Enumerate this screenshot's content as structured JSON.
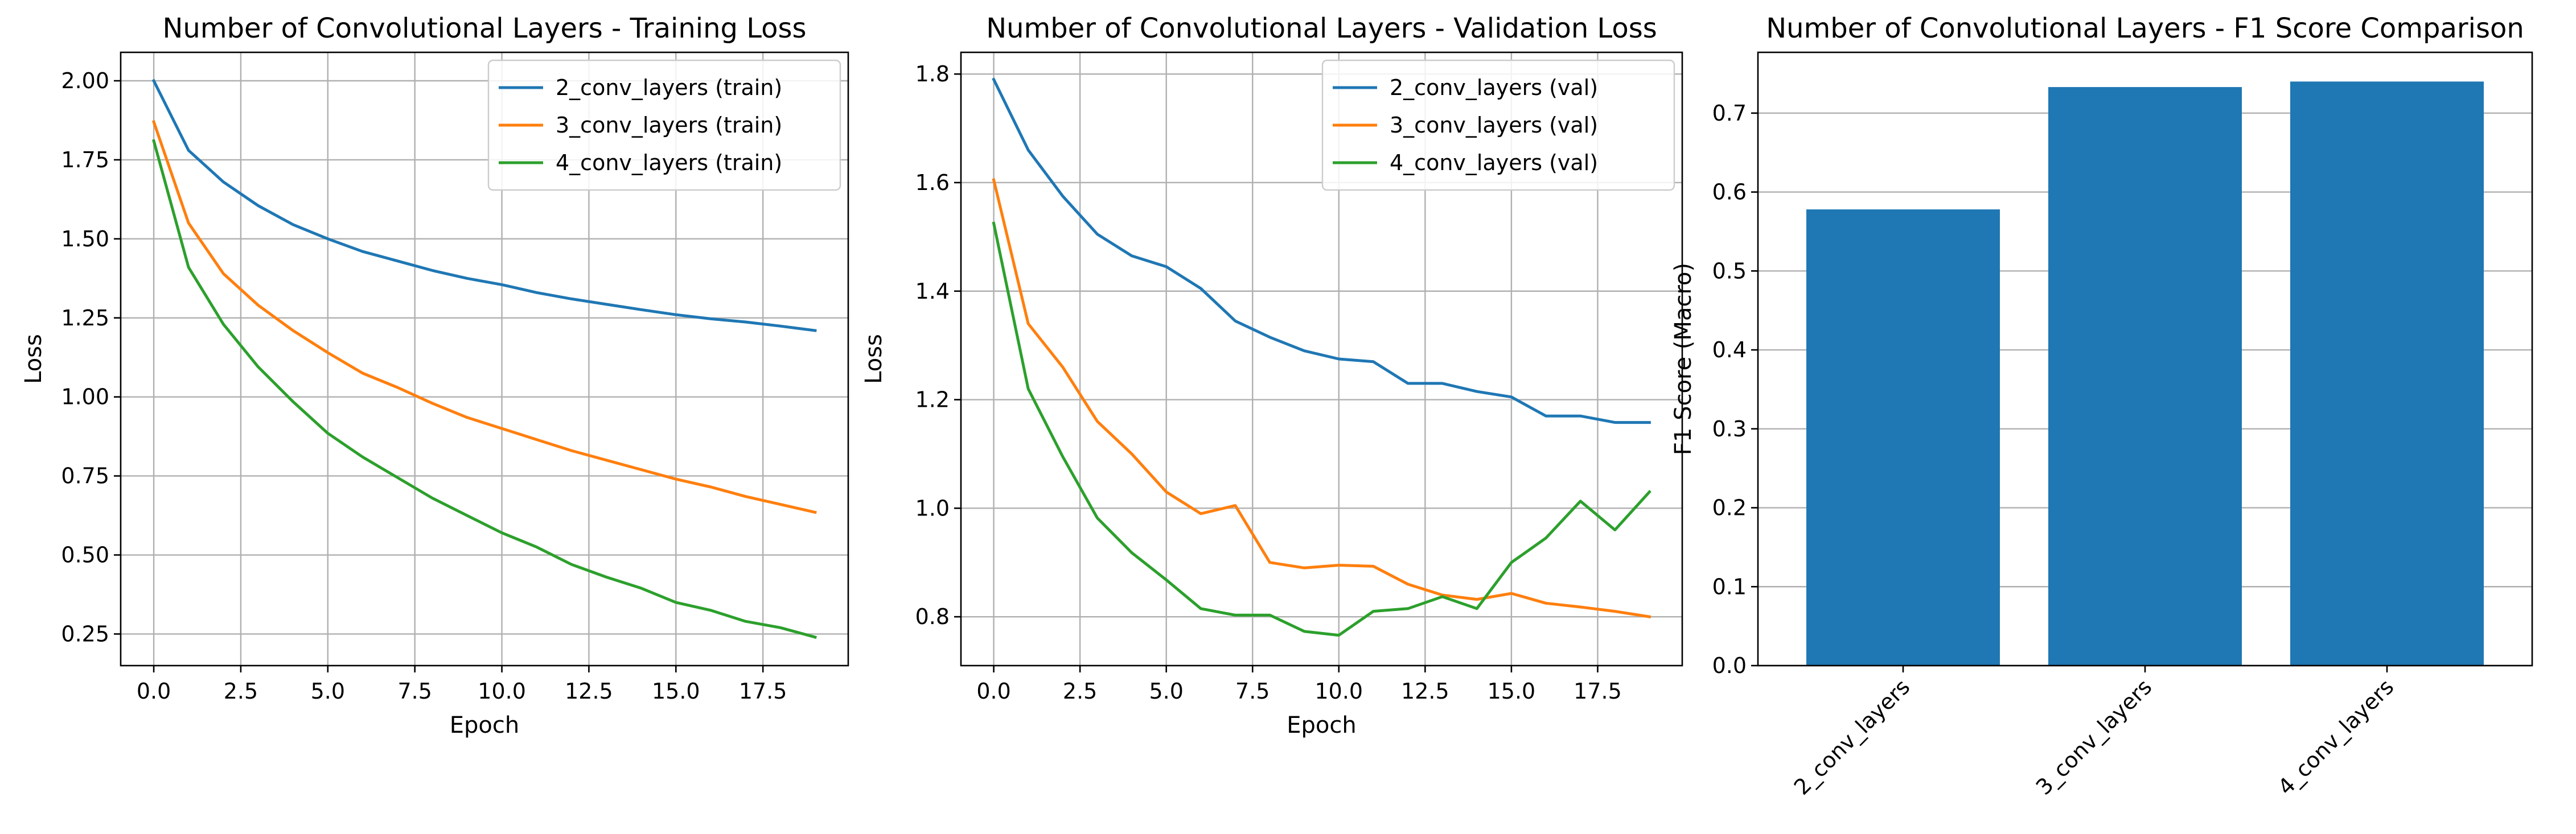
{
  "chart_data": [
    {
      "type": "line",
      "title": "Number of Convolutional Layers - Training Loss",
      "xlabel": "Epoch",
      "ylabel": "Loss",
      "xlim": [
        -0.95,
        19.95
      ],
      "ylim": [
        0.15,
        2.09
      ],
      "xticks": [
        0,
        2.5,
        5,
        7.5,
        10,
        12.5,
        15,
        17.5
      ],
      "xtick_labels": [
        "0.0",
        "2.5",
        "5.0",
        "7.5",
        "10.0",
        "12.5",
        "15.0",
        "17.5"
      ],
      "yticks": [
        0.25,
        0.5,
        0.75,
        1.0,
        1.25,
        1.5,
        1.75,
        2.0
      ],
      "ytick_labels": [
        "0.25",
        "0.50",
        "0.75",
        "1.00",
        "1.25",
        "1.50",
        "1.75",
        "2.00"
      ],
      "grid": true,
      "legend": "top-right",
      "x": [
        0,
        1,
        2,
        3,
        4,
        5,
        6,
        7,
        8,
        9,
        10,
        11,
        12,
        13,
        14,
        15,
        16,
        17,
        18,
        19
      ],
      "series": [
        {
          "name": "2_conv_layers (train)",
          "color": "#1f77b4",
          "values": [
            2.0,
            1.78,
            1.68,
            1.605,
            1.545,
            1.5,
            1.46,
            1.43,
            1.4,
            1.375,
            1.355,
            1.33,
            1.31,
            1.293,
            1.276,
            1.26,
            1.247,
            1.237,
            1.224,
            1.21
          ]
        },
        {
          "name": "3_conv_layers (train)",
          "color": "#ff7f0e",
          "values": [
            1.87,
            1.55,
            1.39,
            1.29,
            1.21,
            1.14,
            1.075,
            1.03,
            0.98,
            0.935,
            0.9,
            0.865,
            0.83,
            0.8,
            0.77,
            0.74,
            0.715,
            0.685,
            0.66,
            0.635
          ]
        },
        {
          "name": "4_conv_layers (train)",
          "color": "#2ca02c",
          "values": [
            1.81,
            1.41,
            1.23,
            1.095,
            0.985,
            0.885,
            0.81,
            0.745,
            0.68,
            0.625,
            0.57,
            0.525,
            0.47,
            0.43,
            0.395,
            0.35,
            0.325,
            0.29,
            0.27,
            0.24
          ]
        }
      ]
    },
    {
      "type": "line",
      "title": "Number of Convolutional Layers - Validation Loss",
      "xlabel": "Epoch",
      "ylabel": "Loss",
      "xlim": [
        -0.95,
        19.95
      ],
      "ylim": [
        0.71,
        1.84
      ],
      "xticks": [
        0,
        2.5,
        5,
        7.5,
        10,
        12.5,
        15,
        17.5
      ],
      "xtick_labels": [
        "0.0",
        "2.5",
        "5.0",
        "7.5",
        "10.0",
        "12.5",
        "15.0",
        "17.5"
      ],
      "yticks": [
        0.8,
        1.0,
        1.2,
        1.4,
        1.6,
        1.8
      ],
      "ytick_labels": [
        "0.8",
        "1.0",
        "1.2",
        "1.4",
        "1.6",
        "1.8"
      ],
      "grid": true,
      "legend": "top-right",
      "x": [
        0,
        1,
        2,
        3,
        4,
        5,
        6,
        7,
        8,
        9,
        10,
        11,
        12,
        13,
        14,
        15,
        16,
        17,
        18,
        19
      ],
      "series": [
        {
          "name": "2_conv_layers (val)",
          "color": "#1f77b4",
          "values": [
            1.79,
            1.66,
            1.575,
            1.505,
            1.465,
            1.445,
            1.405,
            1.345,
            1.315,
            1.29,
            1.275,
            1.27,
            1.23,
            1.23,
            1.215,
            1.205,
            1.17,
            1.17,
            1.158,
            1.158
          ]
        },
        {
          "name": "3_conv_layers (val)",
          "color": "#ff7f0e",
          "values": [
            1.605,
            1.34,
            1.26,
            1.16,
            1.1,
            1.03,
            0.99,
            1.005,
            0.9,
            0.89,
            0.895,
            0.893,
            0.86,
            0.84,
            0.832,
            0.843,
            0.825,
            0.818,
            0.81,
            0.8
          ]
        },
        {
          "name": "4_conv_layers (val)",
          "color": "#2ca02c",
          "values": [
            1.525,
            1.22,
            1.095,
            0.982,
            0.918,
            0.868,
            0.815,
            0.803,
            0.803,
            0.773,
            0.766,
            0.81,
            0.815,
            0.837,
            0.815,
            0.9,
            0.945,
            1.013,
            0.96,
            1.03
          ]
        }
      ]
    },
    {
      "type": "bar",
      "title": "Number of Convolutional Layers - F1 Score Comparison",
      "xlabel": "",
      "ylabel": "F1 Score (Macro)",
      "ylim": [
        0,
        0.777
      ],
      "yticks": [
        0.0,
        0.1,
        0.2,
        0.3,
        0.4,
        0.5,
        0.6,
        0.7
      ],
      "ytick_labels": [
        "0.0",
        "0.1",
        "0.2",
        "0.3",
        "0.4",
        "0.5",
        "0.6",
        "0.7"
      ],
      "grid": true,
      "categories": [
        "2_conv_layers",
        "3_conv_layers",
        "4_conv_layers"
      ],
      "values": [
        0.578,
        0.733,
        0.74
      ],
      "color": "#1f77b4"
    }
  ]
}
